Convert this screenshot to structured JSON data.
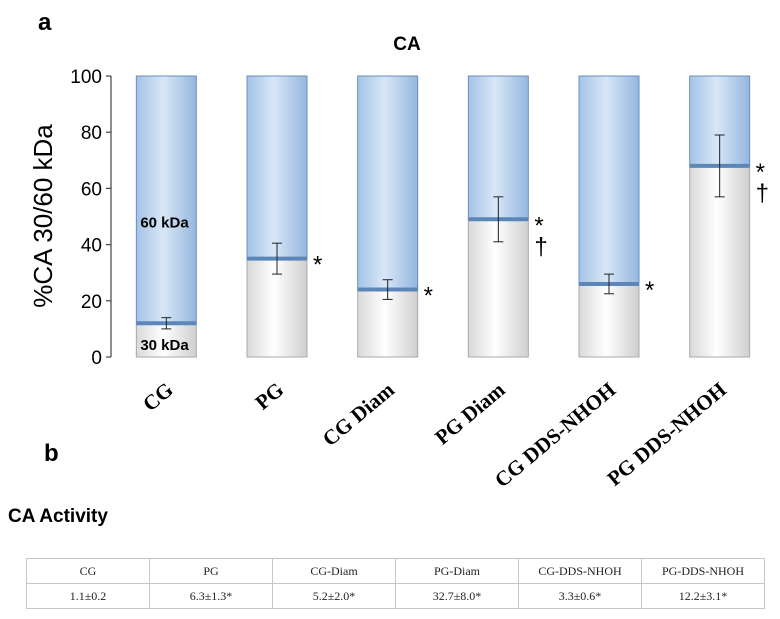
{
  "panel_a_label": "a",
  "panel_b_label": "b",
  "chart_data": {
    "type": "bar",
    "stacked": true,
    "title": "CA",
    "ylabel": "%CA 30/60 kDa",
    "xlabel": "",
    "ylim": [
      0,
      100
    ],
    "yticks": [
      0,
      20,
      40,
      60,
      80,
      100
    ],
    "categories": [
      "CG",
      "PG",
      "CG Diam",
      "PG Diam",
      "CG DDS-NHOH",
      "PG DDS-NHOH"
    ],
    "series": [
      {
        "name": "30 kDa",
        "values": [
          12,
          35,
          24,
          49,
          26,
          68
        ],
        "error": [
          2,
          5.5,
          3.5,
          8,
          3.5,
          11
        ],
        "color": "#f2f2f2"
      },
      {
        "name": "60 kDa",
        "values": [
          88,
          65,
          76,
          51,
          74,
          32
        ],
        "color": "#b8d3ef"
      }
    ],
    "significance": [
      "",
      "*",
      "*",
      "*\n†",
      "*",
      "*\n†"
    ],
    "grid": false
  },
  "activity": {
    "title": "CA  Activity",
    "headers": [
      "CG",
      "PG",
      "CG-Diam",
      "PG-Diam",
      "CG-DDS-NHOH",
      "PG-DDS-NHOH"
    ],
    "values": [
      "1.1±0.2",
      "6.3±1.3*",
      "5.2±2.0*",
      "32.7±8.0*",
      "3.3±0.6*",
      "12.2±3.1*"
    ]
  }
}
